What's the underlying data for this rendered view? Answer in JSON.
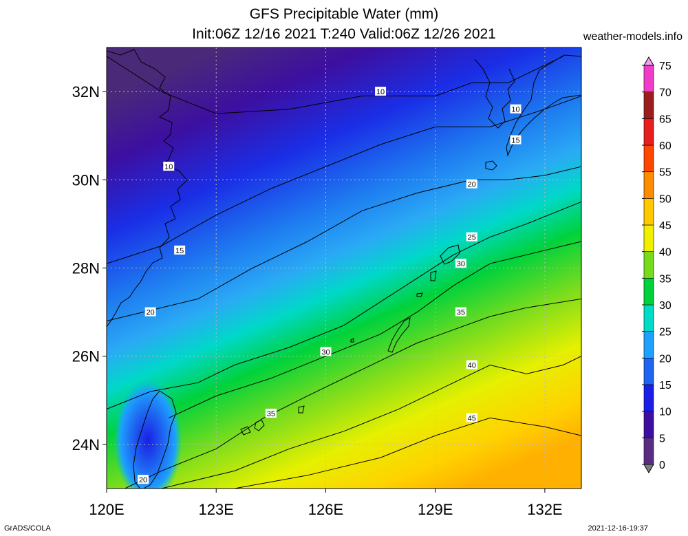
{
  "title": "GFS Precipitable Water (mm)",
  "subtitle": "Init:06Z 12/16 2021 T:240 Valid:06Z 12/26 2021",
  "credit": "weather-models.info",
  "footer_left": "GrADS/COLA",
  "footer_right": "2021-12-16-19:37",
  "map": {
    "lon_range": [
      120,
      133
    ],
    "lat_range": [
      23,
      33
    ],
    "lon_ticks": [
      {
        "value": 120,
        "label": "120E"
      },
      {
        "value": 123,
        "label": "123E"
      },
      {
        "value": 126,
        "label": "126E"
      },
      {
        "value": 129,
        "label": "129E"
      },
      {
        "value": 132,
        "label": "132E"
      }
    ],
    "lat_ticks": [
      {
        "value": 24,
        "label": "24N"
      },
      {
        "value": 26,
        "label": "26N"
      },
      {
        "value": 28,
        "label": "28N"
      },
      {
        "value": 30,
        "label": "30N"
      },
      {
        "value": 32,
        "label": "32N"
      }
    ],
    "grid": true,
    "contours": [
      {
        "value": 10,
        "points": [
          [
            120.0,
            32.8
          ],
          [
            121.5,
            32.0
          ],
          [
            123.0,
            31.5
          ],
          [
            125.0,
            31.6
          ],
          [
            127.0,
            31.9
          ],
          [
            129.0,
            31.9
          ],
          [
            130.0,
            32.2
          ],
          [
            131.0,
            32.2
          ],
          [
            132.5,
            32.8
          ]
        ]
      },
      {
        "value": 15,
        "points": [
          [
            120.0,
            28.1
          ],
          [
            121.5,
            28.5
          ],
          [
            123.0,
            29.2
          ],
          [
            124.5,
            29.8
          ],
          [
            126.0,
            30.3
          ],
          [
            127.5,
            30.8
          ],
          [
            129.0,
            31.2
          ],
          [
            130.5,
            31.2
          ],
          [
            132.0,
            31.6
          ],
          [
            133.0,
            31.9
          ]
        ]
      },
      {
        "value": 20,
        "points": [
          [
            120.0,
            26.8
          ],
          [
            121.0,
            27.0
          ],
          [
            122.5,
            27.3
          ],
          [
            124.0,
            28.0
          ],
          [
            125.5,
            28.6
          ],
          [
            127.0,
            29.3
          ],
          [
            128.5,
            29.7
          ],
          [
            130.0,
            30.0
          ],
          [
            131.0,
            30.0
          ],
          [
            132.0,
            30.1
          ],
          [
            133.0,
            30.3
          ]
        ]
      },
      {
        "value": 25,
        "points": [
          [
            120.0,
            24.8
          ],
          [
            121.2,
            25.2
          ],
          [
            122.5,
            25.4
          ],
          [
            123.5,
            25.8
          ],
          [
            125.0,
            26.2
          ],
          [
            126.5,
            26.7
          ],
          [
            128.0,
            27.5
          ],
          [
            129.5,
            28.3
          ],
          [
            130.5,
            28.7
          ],
          [
            131.5,
            29.0
          ],
          [
            133.0,
            29.5
          ]
        ]
      },
      {
        "value": 30,
        "points": [
          [
            121.7,
            24.6
          ],
          [
            123.0,
            25.1
          ],
          [
            124.5,
            25.5
          ],
          [
            126.0,
            26.0
          ],
          [
            127.5,
            26.5
          ],
          [
            128.5,
            27.0
          ],
          [
            129.5,
            27.6
          ],
          [
            130.5,
            28.1
          ],
          [
            131.5,
            28.3
          ],
          [
            132.5,
            28.5
          ],
          [
            133.0,
            28.6
          ]
        ]
      },
      {
        "value": 35,
        "points": [
          [
            120.5,
            23.0
          ],
          [
            121.5,
            23.4
          ],
          [
            123.0,
            23.9
          ],
          [
            124.3,
            24.6
          ],
          [
            125.5,
            25.1
          ],
          [
            127.0,
            25.7
          ],
          [
            128.5,
            26.3
          ],
          [
            129.5,
            26.6
          ],
          [
            130.5,
            26.9
          ],
          [
            131.5,
            27.1
          ],
          [
            133.0,
            27.3
          ]
        ]
      },
      {
        "value": 40,
        "points": [
          [
            121.5,
            23.0
          ],
          [
            123.5,
            23.4
          ],
          [
            125.0,
            23.9
          ],
          [
            126.5,
            24.3
          ],
          [
            128.0,
            24.8
          ],
          [
            129.5,
            25.4
          ],
          [
            130.5,
            25.8
          ],
          [
            131.5,
            25.6
          ],
          [
            132.5,
            25.8
          ],
          [
            133.0,
            26.0
          ]
        ]
      },
      {
        "value": 45,
        "points": [
          [
            123.5,
            23.0
          ],
          [
            125.5,
            23.3
          ],
          [
            127.5,
            23.7
          ],
          [
            129.0,
            24.2
          ],
          [
            130.5,
            24.6
          ],
          [
            132.0,
            24.4
          ],
          [
            133.0,
            24.2
          ]
        ]
      }
    ],
    "contour_labels": [
      {
        "text": "10",
        "lon": 127.5,
        "lat": 32.0
      },
      {
        "text": "10",
        "lon": 131.2,
        "lat": 31.6
      },
      {
        "text": "10",
        "lon": 121.7,
        "lat": 30.3
      },
      {
        "text": "15",
        "lon": 131.2,
        "lat": 30.9
      },
      {
        "text": "15",
        "lon": 122.0,
        "lat": 28.4
      },
      {
        "text": "20",
        "lon": 130.0,
        "lat": 29.9
      },
      {
        "text": "20",
        "lon": 121.2,
        "lat": 27.0
      },
      {
        "text": "20",
        "lon": 121.0,
        "lat": 23.2
      },
      {
        "text": "25",
        "lon": 130.0,
        "lat": 28.7
      },
      {
        "text": "30",
        "lon": 129.7,
        "lat": 28.1
      },
      {
        "text": "30",
        "lon": 126.0,
        "lat": 26.1
      },
      {
        "text": "35",
        "lon": 129.7,
        "lat": 27.0
      },
      {
        "text": "35",
        "lon": 124.5,
        "lat": 24.7
      },
      {
        "text": "40",
        "lon": 130.0,
        "lat": 25.8
      },
      {
        "text": "45",
        "lon": 130.0,
        "lat": 24.6
      }
    ]
  },
  "colorbar": {
    "levels": [
      0,
      5,
      10,
      15,
      20,
      25,
      30,
      35,
      40,
      45,
      50,
      55,
      60,
      65,
      70,
      75
    ],
    "labels": [
      "0",
      "5",
      "10",
      "15",
      "20",
      "25",
      "30",
      "35",
      "40",
      "45",
      "50",
      "55",
      "60",
      "65",
      "70",
      "75"
    ],
    "colors": [
      "#7d7d7d",
      "#5a2d82",
      "#3d0fa0",
      "#1a1ee6",
      "#1e64f0",
      "#1ea0ff",
      "#00dcc8",
      "#00d23c",
      "#78dc1e",
      "#f0f000",
      "#ffc800",
      "#ff8c00",
      "#ff4600",
      "#e61e1e",
      "#9b1e1e",
      "#f03cc8",
      "#f5a0f0"
    ]
  }
}
